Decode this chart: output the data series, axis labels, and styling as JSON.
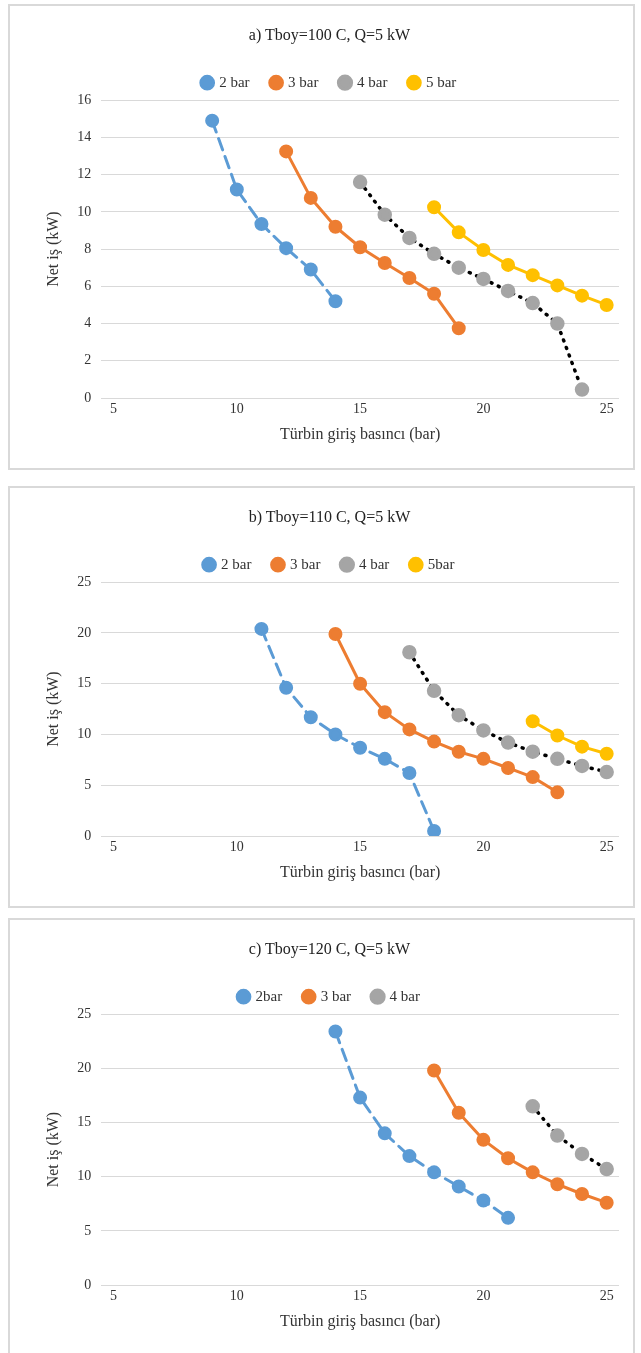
{
  "chart_data": [
    {
      "type": "line",
      "title": "a) Tboy=100 C, Q=5 kW",
      "xlabel": "Türbin giriş basıncı (bar)",
      "ylabel": "Net iş (kW)",
      "xlim": [
        4.5,
        25.5
      ],
      "xticks": [
        5,
        10,
        15,
        20,
        25
      ],
      "ylim": [
        0,
        16
      ],
      "yticks": [
        0,
        2,
        4,
        6,
        8,
        10,
        12,
        14,
        16
      ],
      "grid": "y",
      "legend": "top",
      "marker": "circle",
      "series": [
        {
          "name": "2 bar",
          "color": "#5b9bd5",
          "line_style": "dashed",
          "x": [
            9,
            10,
            11,
            12,
            13,
            14
          ],
          "values": [
            14.9,
            11.2,
            9.35,
            8.05,
            6.9,
            5.2
          ]
        },
        {
          "name": "3 bar",
          "color": "#ed7d31",
          "line_style": "solid",
          "x": [
            12,
            13,
            14,
            15,
            16,
            17,
            18,
            19
          ],
          "values": [
            13.25,
            10.75,
            9.2,
            8.1,
            7.25,
            6.45,
            5.6,
            3.75
          ]
        },
        {
          "name": "4 bar",
          "color": "#a5a5a5",
          "line_style": "dotted",
          "x": [
            15,
            16,
            17,
            18,
            19,
            20,
            21,
            22,
            23,
            24
          ],
          "values": [
            11.6,
            9.85,
            8.6,
            7.75,
            7.0,
            6.4,
            5.75,
            5.1,
            4.0,
            0.45
          ]
        },
        {
          "name": "5 bar",
          "color": "#ffc000",
          "line_style": "solid",
          "x": [
            18,
            19,
            20,
            21,
            22,
            23,
            24,
            25
          ],
          "values": [
            10.25,
            8.9,
            7.95,
            7.15,
            6.6,
            6.05,
            5.5,
            5.0
          ]
        }
      ]
    },
    {
      "type": "line",
      "title": "b) Tboy=110 C, Q=5 kW",
      "xlabel": "Türbin giriş basıncı (bar)",
      "ylabel": "Net iş (kW)",
      "xlim": [
        4.5,
        25.5
      ],
      "xticks": [
        5,
        10,
        15,
        20,
        25
      ],
      "ylim": [
        0,
        25
      ],
      "yticks": [
        0,
        5,
        10,
        15,
        20,
        25
      ],
      "grid": "y",
      "legend": "top",
      "marker": "circle",
      "series": [
        {
          "name": "2 bar",
          "color": "#5b9bd5",
          "line_style": "dashed",
          "x": [
            11,
            12,
            13,
            14,
            15,
            16,
            17,
            18
          ],
          "values": [
            20.4,
            14.6,
            11.7,
            10.0,
            8.7,
            7.6,
            6.2,
            0.5
          ]
        },
        {
          "name": "3 bar",
          "color": "#ed7d31",
          "line_style": "solid",
          "x": [
            14,
            15,
            16,
            17,
            18,
            19,
            20,
            21,
            22,
            23
          ],
          "values": [
            19.9,
            15.0,
            12.2,
            10.5,
            9.3,
            8.3,
            7.6,
            6.7,
            5.8,
            4.3
          ]
        },
        {
          "name": "4 bar",
          "color": "#a5a5a5",
          "line_style": "dotted",
          "x": [
            17,
            18,
            19,
            20,
            21,
            22,
            23,
            24,
            25
          ],
          "values": [
            18.1,
            14.3,
            11.9,
            10.4,
            9.2,
            8.3,
            7.6,
            6.9,
            6.3
          ]
        },
        {
          "name": "5bar",
          "color": "#ffc000",
          "line_style": "solid",
          "x": [
            22,
            23,
            24,
            25
          ],
          "values": [
            11.3,
            9.9,
            8.8,
            8.1
          ]
        }
      ]
    },
    {
      "type": "line",
      "title": "c) Tboy=120 C, Q=5 kW",
      "xlabel": "Türbin giriş basıncı (bar)",
      "ylabel": "Net iş (kW)",
      "xlim": [
        4.5,
        25.5
      ],
      "xticks": [
        5,
        10,
        15,
        20,
        25
      ],
      "ylim": [
        0,
        25
      ],
      "yticks": [
        0,
        5,
        10,
        15,
        20,
        25
      ],
      "grid": "y",
      "legend": "top",
      "marker": "circle",
      "series": [
        {
          "name": "2bar",
          "color": "#5b9bd5",
          "line_style": "dashed",
          "x": [
            14,
            15,
            16,
            17,
            18,
            19,
            20,
            21
          ],
          "values": [
            23.4,
            17.3,
            14.0,
            11.9,
            10.4,
            9.1,
            7.8,
            6.2
          ]
        },
        {
          "name": "3 bar",
          "color": "#ed7d31",
          "line_style": "solid",
          "x": [
            18,
            19,
            20,
            21,
            22,
            23,
            24,
            25
          ],
          "values": [
            19.8,
            15.9,
            13.4,
            11.7,
            10.4,
            9.3,
            8.4,
            7.6
          ]
        },
        {
          "name": "4 bar",
          "color": "#a5a5a5",
          "line_style": "dotted",
          "x": [
            22,
            23,
            24,
            25
          ],
          "values": [
            16.5,
            13.8,
            12.1,
            10.7
          ]
        }
      ]
    }
  ]
}
